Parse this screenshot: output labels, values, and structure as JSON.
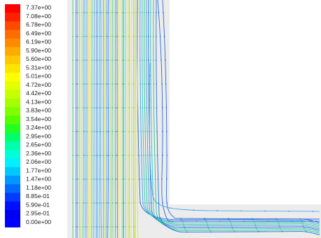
{
  "legend": {
    "labels": [
      "7.37e+00",
      "7.08e+00",
      "6.78e+00",
      "6.49e+00",
      "6.19e+00",
      "5.90e+00",
      "5.60e+00",
      "5.31e+00",
      "5.01e+00",
      "4.72e+00",
      "4.42e+00",
      "4.13e+00",
      "3.83e+00",
      "3.54e+00",
      "3.24e+00",
      "2.95e+00",
      "2.65e+00",
      "2.36e+00",
      "2.06e+00",
      "1.77e+00",
      "1.47e+00",
      "1.18e+00",
      "8.85e-01",
      "5.90e-01",
      "2.95e-01",
      "0.00e+00"
    ],
    "colors": [
      "#ff0000",
      "#ff2000",
      "#ff4a00",
      "#ff6c00",
      "#ff8a00",
      "#ffab00",
      "#ffc800",
      "#ffe400",
      "#ffff00",
      "#e4ff00",
      "#c6ff00",
      "#a6ff00",
      "#80ff00",
      "#55ff00",
      "#22ff22",
      "#00ff6a",
      "#00ffaa",
      "#00ffd8",
      "#00f0ff",
      "#00c8ff",
      "#0098ff",
      "#006aff",
      "#003cff",
      "#0010ff",
      "#0000f0",
      "#0000ff"
    ]
  },
  "domain_colors": {
    "fluid_region": "#ececec",
    "streamline_palette": [
      "#2a6bd8",
      "#3b9cf0",
      "#27c6c6",
      "#27c987",
      "#8fd84a",
      "#c6e03c",
      "#e0e23a"
    ]
  }
}
